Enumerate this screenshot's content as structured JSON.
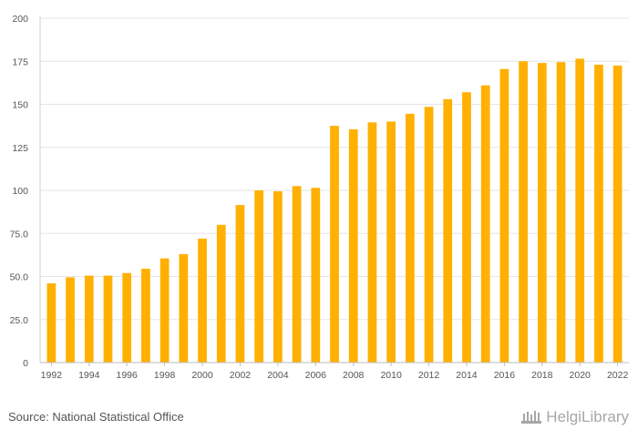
{
  "chart_data": {
    "type": "bar",
    "title": "",
    "xlabel": "",
    "ylabel": "",
    "categories": [
      "1992",
      "1993",
      "1994",
      "1995",
      "1996",
      "1997",
      "1998",
      "1999",
      "2000",
      "2001",
      "2002",
      "2003",
      "2004",
      "2005",
      "2006",
      "2007",
      "2008",
      "2009",
      "2010",
      "2011",
      "2012",
      "2013",
      "2014",
      "2015",
      "2016",
      "2017",
      "2018",
      "2019",
      "2020",
      "2021",
      "2022"
    ],
    "x_tick_labels": [
      "1992",
      "1994",
      "1996",
      "1998",
      "2000",
      "2002",
      "2004",
      "2006",
      "2008",
      "2010",
      "2012",
      "2014",
      "2016",
      "2018",
      "2020",
      "2022"
    ],
    "values": [
      46.0,
      49.5,
      50.5,
      50.5,
      52.0,
      54.5,
      60.5,
      63.0,
      72.0,
      80.0,
      91.5,
      100.0,
      99.5,
      102.5,
      101.5,
      137.5,
      135.5,
      139.5,
      140.0,
      144.5,
      148.5,
      153.0,
      157.0,
      161.0,
      170.5,
      175.0,
      174.0,
      174.5,
      176.5,
      173.0,
      172.5
    ],
    "ylim": [
      0,
      200
    ],
    "y_ticks": [
      0,
      25,
      50,
      75,
      100,
      125,
      150,
      175,
      200
    ],
    "y_tick_labels": [
      "0",
      "25.0",
      "50.0",
      "75.0",
      "100",
      "125",
      "150",
      "175",
      "200"
    ],
    "grid": true,
    "bar_color": "#FFB000"
  },
  "footer": {
    "source": "Source: National Statistical Office",
    "brand": "HelgiLibrary"
  }
}
